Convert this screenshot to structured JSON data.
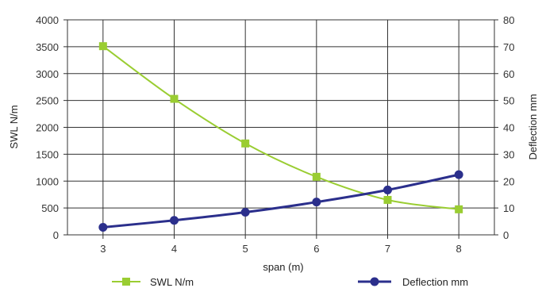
{
  "chart_data": {
    "type": "line",
    "x": [
      3,
      4,
      5,
      6,
      7,
      8
    ],
    "series": [
      {
        "name": "SWL N/m",
        "axis": "left",
        "color": "#9ACD32",
        "marker": "square",
        "values": [
          3510,
          2530,
          1700,
          1080,
          650,
          475
        ]
      },
      {
        "name": "Deflection mm",
        "axis": "right",
        "color": "#2B2F8C",
        "marker": "circle",
        "values": [
          2.8,
          5.4,
          8.4,
          12.2,
          16.7,
          22.4
        ]
      }
    ],
    "xlabel": "span (m)",
    "ylabel": "SWL N/m",
    "y2label": "Deflection mm",
    "xticks": [
      "3",
      "4",
      "5",
      "6",
      "7",
      "8"
    ],
    "yticks": [
      "0",
      "500",
      "1000",
      "1500",
      "2000",
      "2500",
      "3000",
      "3500",
      "4000"
    ],
    "y2ticks": [
      "0",
      "10",
      "20",
      "30",
      "40",
      "50",
      "60",
      "70",
      "80"
    ],
    "xlim": [
      2.5,
      8.5
    ],
    "ylim": [
      0,
      4000
    ],
    "y2lim": [
      0,
      80
    ],
    "grid": true,
    "legend_position": "bottom",
    "grid_color": "#333333"
  }
}
